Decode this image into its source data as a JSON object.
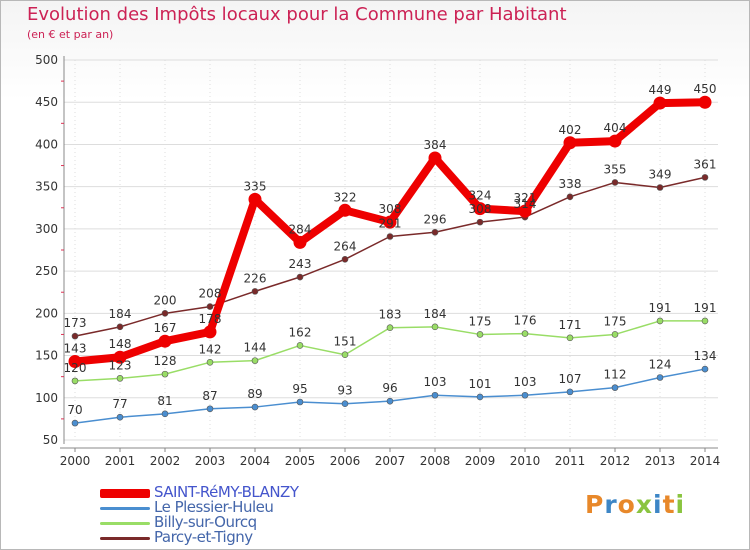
{
  "header": {
    "title": "Evolution des Impôts locaux pour la Commune par Habitant",
    "subtitle": "(en € et par an)"
  },
  "brand": {
    "text": "Proxiti"
  },
  "colors": {
    "title": "#cc2255",
    "axis_text": "#333333",
    "grid": "#dddddd",
    "brand_letters": [
      "#e8882a",
      "#3d86c6",
      "#e8882a",
      "#8ac43f",
      "#3d86c6",
      "#e8882a",
      "#8ac43f"
    ]
  },
  "chart_data": {
    "type": "line",
    "title": "Evolution des Impôts locaux pour la Commune par Habitant",
    "subtitle": "(en € et par an)",
    "xlabel": "",
    "ylabel": "",
    "x": [
      "2000",
      "2001",
      "2002",
      "2003",
      "2004",
      "2005",
      "2006",
      "2007",
      "2008",
      "2009",
      "2010",
      "2011",
      "2012",
      "2013",
      "2014"
    ],
    "ylim": [
      50,
      500
    ],
    "yticks": [
      50,
      100,
      150,
      200,
      250,
      300,
      350,
      400,
      450,
      500
    ],
    "grid": true,
    "legend_position": "bottom-left",
    "series": [
      {
        "name": "SAINT-RéMY-BLANZY",
        "color": "#ee0000",
        "emphasis": true,
        "values": [
          143,
          148,
          167,
          178,
          335,
          284,
          322,
          308,
          384,
          324,
          321,
          402,
          404,
          449,
          450
        ],
        "labels": [
          "143",
          "148",
          "167",
          "178",
          "335",
          "284",
          "322",
          "308",
          "384",
          "324",
          "321",
          "402",
          "404",
          "449",
          "450"
        ]
      },
      {
        "name": "Le Plessier-Huleu",
        "color": "#4a8ed0",
        "emphasis": false,
        "values": [
          70,
          77,
          81,
          87,
          89,
          95,
          93,
          96,
          103,
          101,
          103,
          107,
          112,
          124,
          134
        ],
        "labels": [
          "70",
          "77",
          "81",
          "87",
          "89",
          "95",
          "93",
          "96",
          "103",
          "101",
          "103",
          "107",
          "112",
          "124",
          "134"
        ]
      },
      {
        "name": "Billy-sur-Ourcq",
        "color": "#99dd66",
        "emphasis": false,
        "values": [
          120,
          123,
          128,
          142,
          144,
          162,
          151,
          183,
          184,
          175,
          176,
          171,
          175,
          191,
          191
        ],
        "labels": [
          "120",
          "123",
          "128",
          "142",
          "144",
          "162",
          "151",
          "183",
          "184",
          "175",
          "176",
          "171",
          "175",
          "191",
          "191"
        ]
      },
      {
        "name": "Parcy-et-Tigny",
        "color": "#7a2a2a",
        "emphasis": false,
        "values": [
          173,
          184,
          200,
          208,
          226,
          243,
          264,
          291,
          296,
          308,
          314,
          338,
          355,
          349,
          361
        ],
        "labels": [
          "173",
          "184",
          "200",
          "208",
          "226",
          "243",
          "264",
          "291",
          "296",
          "308",
          "314",
          "338",
          "355",
          "349",
          "361"
        ]
      }
    ]
  }
}
